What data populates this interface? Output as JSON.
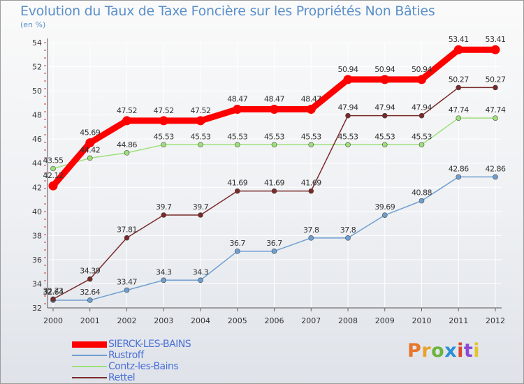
{
  "header": {
    "title": "Evolution du Taux de Taxe Foncière sur les Propriétés Non Bâties",
    "unit": "(en %)"
  },
  "brand": {
    "text": "Proxiti",
    "colors": [
      "#e8762b",
      "#e8a22b",
      "#6eb33f",
      "#2b8fd6",
      "#d64a2b",
      "#8b4ad6",
      "#e8c22b"
    ]
  },
  "chart_data": {
    "type": "line",
    "title": "Evolution du Taux de Taxe Foncière sur les Propriétés Non Bâties",
    "ylabel": "(en %)",
    "xlabel": "",
    "ylim": [
      32,
      54
    ],
    "yticks": [
      32,
      34,
      36,
      38,
      40,
      42,
      44,
      46,
      48,
      50,
      52,
      54
    ],
    "grid": true,
    "categories": [
      "2000",
      "2001",
      "2002",
      "2003",
      "2004",
      "2005",
      "2006",
      "2007",
      "2008",
      "2009",
      "2010",
      "2011",
      "2012"
    ],
    "series": [
      {
        "name": "SIERCK-LES-BAINS",
        "color": "#ff0000",
        "labels": [
          "42.12",
          "45.69",
          "47.52",
          "47.52",
          "47.52",
          "48.47",
          "48.47",
          "48.47",
          "50.94",
          "50.94",
          "50.94",
          "53.41",
          "53.41"
        ],
        "values": [
          42.12,
          45.69,
          47.52,
          47.52,
          47.52,
          48.47,
          48.47,
          48.47,
          50.94,
          50.94,
          50.94,
          53.41,
          53.41
        ]
      },
      {
        "name": "Rustroff",
        "color": "#6f9fd0",
        "labels": [
          "32.64",
          "32.64",
          "33.47",
          "34.3",
          "34.3",
          "36.7",
          "36.7",
          "37.8",
          "37.8",
          "39.69",
          "40.88",
          "42.86",
          "42.86"
        ],
        "values": [
          32.64,
          32.64,
          33.47,
          34.3,
          34.3,
          36.7,
          36.7,
          37.8,
          37.8,
          39.69,
          40.88,
          42.86,
          42.86
        ]
      },
      {
        "name": "Contz-les-Bains",
        "color": "#9ee07a",
        "labels": [
          "43.55",
          "44.42",
          "44.86",
          "45.53",
          "45.53",
          "45.53",
          "45.53",
          "45.53",
          "45.53",
          "45.53",
          "45.53",
          "47.74",
          "47.74"
        ],
        "values": [
          43.55,
          44.42,
          44.86,
          45.53,
          45.53,
          45.53,
          45.53,
          45.53,
          45.53,
          45.53,
          45.53,
          47.74,
          47.74
        ]
      },
      {
        "name": "Rettel",
        "color": "#7a2a2a",
        "labels": [
          "32.73",
          "34.39",
          "37.81",
          "39.7",
          "39.7",
          "41.69",
          "41.69",
          "41.69",
          "47.94",
          "47.94",
          "47.94",
          "50.27",
          "50.27"
        ],
        "values": [
          32.73,
          34.39,
          37.81,
          39.7,
          39.7,
          41.69,
          41.69,
          41.69,
          47.94,
          47.94,
          47.94,
          50.27,
          50.27
        ]
      }
    ]
  }
}
